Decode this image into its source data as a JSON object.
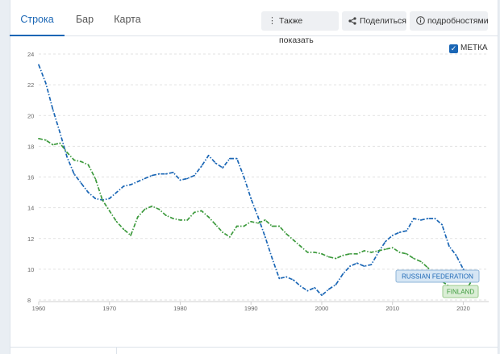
{
  "tabs": [
    {
      "label": "Строка",
      "active": true
    },
    {
      "label": "Бар",
      "active": false
    },
    {
      "label": "Карта",
      "active": false
    }
  ],
  "actions": {
    "also_show": {
      "icon": "vertical-dots-icon",
      "label": "Также показать"
    },
    "share": {
      "icon": "share-icon",
      "label": "Поделиться"
    },
    "details": {
      "icon": "info-icon",
      "label": "подробностями"
    }
  },
  "legend_toggle": {
    "label": "МЕТКА",
    "checked": true,
    "color": "#1a66b5"
  },
  "chart_data": {
    "type": "line",
    "xlim": [
      1960,
      2022
    ],
    "ylim": [
      8,
      24
    ],
    "x_ticks": [
      "1960",
      "1970",
      "1980",
      "1990",
      "2000",
      "2010",
      "2020"
    ],
    "y_ticks": [
      "8",
      "10",
      "12",
      "14",
      "16",
      "18",
      "20",
      "22",
      "24"
    ],
    "grid": true,
    "series": [
      {
        "name": "RUSSIAN FEDERATION",
        "color": "#1a66b5",
        "x": [
          1960,
          1961,
          1962,
          1963,
          1964,
          1965,
          1966,
          1967,
          1968,
          1969,
          1970,
          1971,
          1972,
          1973,
          1974,
          1975,
          1976,
          1977,
          1978,
          1979,
          1980,
          1981,
          1982,
          1983,
          1984,
          1985,
          1986,
          1987,
          1988,
          1989,
          1990,
          1991,
          1992,
          1993,
          1994,
          1995,
          1996,
          1997,
          1998,
          1999,
          2000,
          2001,
          2002,
          2003,
          2004,
          2005,
          2006,
          2007,
          2008,
          2009,
          2010,
          2011,
          2012,
          2013,
          2014,
          2015,
          2016,
          2017,
          2018,
          2019,
          2020,
          2021
        ],
        "values": [
          23.3,
          22.1,
          20.4,
          18.9,
          17.3,
          16.2,
          15.6,
          15.0,
          14.6,
          14.5,
          14.6,
          15.0,
          15.4,
          15.5,
          15.7,
          15.9,
          16.1,
          16.2,
          16.2,
          16.3,
          15.8,
          15.9,
          16.1,
          16.7,
          17.4,
          16.9,
          16.6,
          17.2,
          17.2,
          16.0,
          14.6,
          13.4,
          12.1,
          10.7,
          9.4,
          9.5,
          9.3,
          8.9,
          8.6,
          8.8,
          8.3,
          8.7,
          9.0,
          9.7,
          10.2,
          10.4,
          10.2,
          10.3,
          11.1,
          11.8,
          12.2,
          12.4,
          12.5,
          13.3,
          13.2,
          13.3,
          13.3,
          12.9,
          11.5,
          10.9,
          10.0,
          9.7
        ]
      },
      {
        "name": "FINLAND",
        "color": "#3d9a3d",
        "x": [
          1960,
          1961,
          1962,
          1963,
          1964,
          1965,
          1966,
          1967,
          1968,
          1969,
          1970,
          1971,
          1972,
          1973,
          1974,
          1975,
          1976,
          1977,
          1978,
          1979,
          1980,
          1981,
          1982,
          1983,
          1984,
          1985,
          1986,
          1987,
          1988,
          1989,
          1990,
          1991,
          1992,
          1993,
          1994,
          1995,
          1996,
          1997,
          1998,
          1999,
          2000,
          2001,
          2002,
          2003,
          2004,
          2005,
          2006,
          2007,
          2008,
          2009,
          2010,
          2011,
          2012,
          2013,
          2014,
          2015,
          2016,
          2017,
          2018,
          2019,
          2020,
          2021
        ],
        "values": [
          18.5,
          18.4,
          18.1,
          18.2,
          17.6,
          17.1,
          17.0,
          16.8,
          15.9,
          14.5,
          13.8,
          13.1,
          12.6,
          12.2,
          13.4,
          13.9,
          14.1,
          13.9,
          13.5,
          13.3,
          13.2,
          13.2,
          13.7,
          13.8,
          13.4,
          12.9,
          12.4,
          12.1,
          12.8,
          12.8,
          13.1,
          13.0,
          13.2,
          12.8,
          12.8,
          12.3,
          11.9,
          11.5,
          11.1,
          11.1,
          11.0,
          10.8,
          10.7,
          10.9,
          11.0,
          11.0,
          11.2,
          11.1,
          11.2,
          11.3,
          11.4,
          11.1,
          11.0,
          10.7,
          10.5,
          10.1,
          9.6,
          9.2,
          8.9,
          8.7,
          8.4,
          9.1
        ]
      }
    ]
  }
}
